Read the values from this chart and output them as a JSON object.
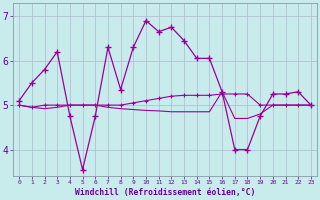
{
  "xlabel": "Windchill (Refroidissement éolien,°C)",
  "hours": [
    0,
    1,
    2,
    3,
    4,
    5,
    6,
    7,
    8,
    9,
    10,
    11,
    12,
    13,
    14,
    15,
    16,
    17,
    18,
    19,
    20,
    21,
    22,
    23
  ],
  "line1": [
    5.1,
    5.5,
    5.8,
    6.2,
    4.75,
    3.55,
    4.75,
    6.3,
    5.35,
    6.3,
    6.9,
    6.65,
    6.75,
    6.45,
    6.05,
    6.05,
    5.3,
    4.0,
    4.0,
    4.75,
    5.25,
    5.25,
    5.3,
    5.0
  ],
  "line2": [
    5.0,
    4.95,
    5.0,
    5.0,
    5.0,
    5.0,
    5.0,
    5.0,
    5.0,
    5.05,
    5.1,
    5.15,
    5.2,
    5.22,
    5.22,
    5.22,
    5.25,
    5.25,
    5.25,
    5.0,
    5.0,
    5.0,
    5.0,
    5.0
  ],
  "line3": [
    5.0,
    4.95,
    4.92,
    4.95,
    5.0,
    5.0,
    5.0,
    4.95,
    4.92,
    4.9,
    4.88,
    4.87,
    4.85,
    4.85,
    4.85,
    4.85,
    5.3,
    4.7,
    4.7,
    4.8,
    5.0,
    5.0,
    5.0,
    5.0
  ],
  "bg_color": "#c8ecec",
  "line_color": "#990099",
  "grid_color": "#b0b8d0",
  "tick_color": "#660099",
  "ylim": [
    3.4,
    7.3
  ],
  "yticks": [
    4,
    5,
    6,
    7
  ],
  "xlim": [
    -0.5,
    23.5
  ]
}
